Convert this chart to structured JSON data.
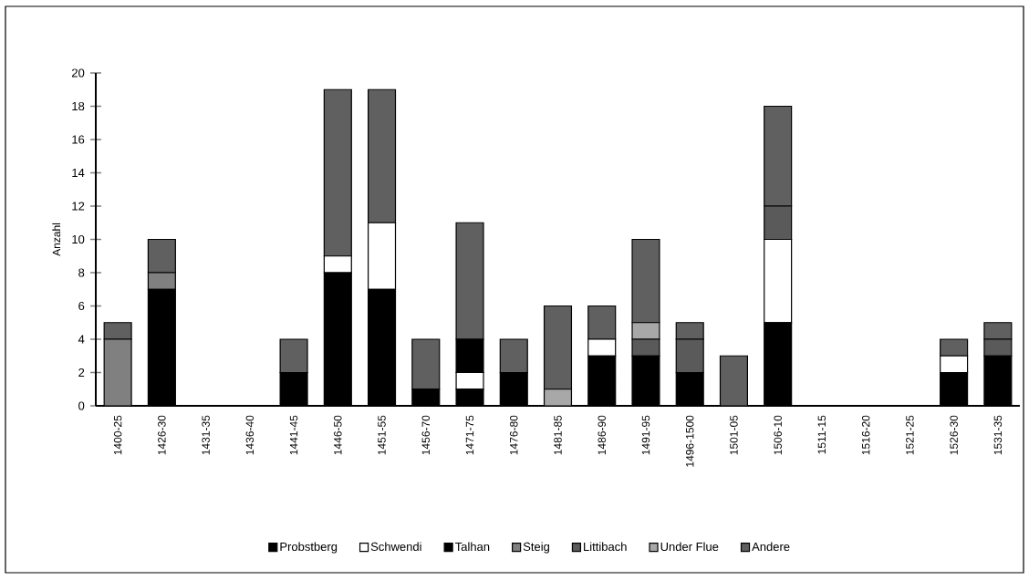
{
  "chart_data": {
    "type": "bar",
    "stacked": true,
    "ylabel": "Anzahl",
    "categories": [
      "1400-25",
      "1426-30",
      "1431-35",
      "1436-40",
      "1441-45",
      "1446-50",
      "1451-55",
      "1456-70",
      "1471-75",
      "1476-80",
      "1481-85",
      "1486-90",
      "1491-95",
      "1496-1500",
      "1501-05",
      "1506-10",
      "1511-15",
      "1516-20",
      "1521-25",
      "1526-30",
      "1531-35"
    ],
    "series": [
      {
        "name": "Probstberg",
        "color": "#000000",
        "values": [
          0,
          7,
          0,
          0,
          2,
          8,
          7,
          1,
          1,
          2,
          0,
          3,
          3,
          2,
          0,
          5,
          0,
          0,
          0,
          2,
          3
        ]
      },
      {
        "name": "Schwendi",
        "color": "#ffffff",
        "values": [
          0,
          0,
          0,
          0,
          0,
          1,
          4,
          0,
          1,
          0,
          0,
          1,
          0,
          0,
          0,
          5,
          0,
          0,
          0,
          1,
          0
        ]
      },
      {
        "name": "Talhan",
        "color": "#000000",
        "values": [
          0,
          0,
          0,
          0,
          0,
          0,
          0,
          0,
          2,
          0,
          0,
          0,
          0,
          0,
          0,
          0,
          0,
          0,
          0,
          0,
          0
        ]
      },
      {
        "name": "Steig",
        "color": "#808080",
        "values": [
          4,
          1,
          0,
          0,
          0,
          0,
          0,
          0,
          0,
          0,
          0,
          0,
          0,
          0,
          0,
          0,
          0,
          0,
          0,
          0,
          0
        ]
      },
      {
        "name": "Littibach",
        "color": "#5a5a5a",
        "values": [
          0,
          0,
          0,
          0,
          0,
          0,
          0,
          0,
          0,
          0,
          0,
          0,
          1,
          2,
          0,
          2,
          0,
          0,
          0,
          0,
          1
        ]
      },
      {
        "name": "Under Flue",
        "color": "#a8a8a8",
        "values": [
          0,
          0,
          0,
          0,
          0,
          0,
          0,
          0,
          0,
          0,
          1,
          0,
          1,
          0,
          0,
          0,
          0,
          0,
          0,
          0,
          0
        ]
      },
      {
        "name": "Andere",
        "color": "#606060",
        "values": [
          1,
          2,
          0,
          0,
          2,
          10,
          8,
          3,
          7,
          2,
          5,
          2,
          5,
          1,
          3,
          6,
          0,
          0,
          0,
          1,
          1
        ]
      }
    ],
    "ylim": [
      0,
      20
    ],
    "yticks": [
      0,
      2,
      4,
      6,
      8,
      10,
      12,
      14,
      16,
      18,
      20
    ],
    "legend": "bottom"
  }
}
